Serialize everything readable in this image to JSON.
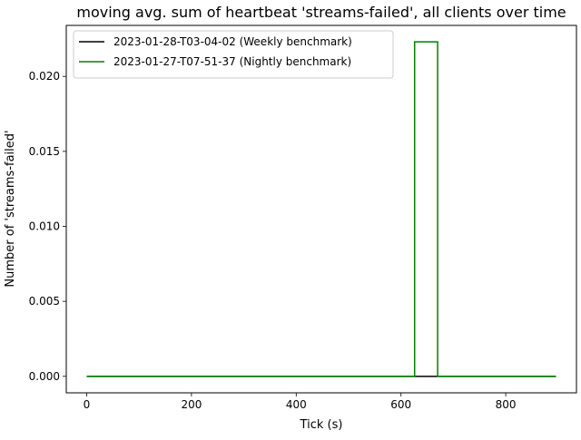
{
  "chart_data": {
    "type": "line",
    "title": "moving avg. sum of heartbeat 'streams-failed', all clients over time",
    "xlabel": "Tick (s)",
    "ylabel": "Number of 'streams-failed'",
    "xlim": [
      -39,
      935
    ],
    "ylim": [
      -0.0011,
      0.0234
    ],
    "xticks": [
      0,
      200,
      400,
      600,
      800
    ],
    "xtick_labels": [
      "0",
      "200",
      "400",
      "600",
      "800"
    ],
    "yticks": [
      0.0,
      0.005,
      0.01,
      0.015,
      0.02
    ],
    "ytick_labels": [
      "0.000",
      "0.005",
      "0.010",
      "0.015",
      "0.020"
    ],
    "grid": false,
    "legend_position": "top-left",
    "series": [
      {
        "name": "2023-01-28-T03-04-02 (Weekly benchmark)",
        "color": "#000000",
        "x": [
          0,
          896
        ],
        "y": [
          0,
          0
        ]
      },
      {
        "name": "2023-01-27-T07-51-37 (Nightly benchmark)",
        "color": "#008000",
        "x": [
          0,
          626,
          626,
          670,
          670,
          896
        ],
        "y": [
          0,
          0,
          0.0223,
          0.0223,
          0,
          0
        ]
      }
    ]
  }
}
